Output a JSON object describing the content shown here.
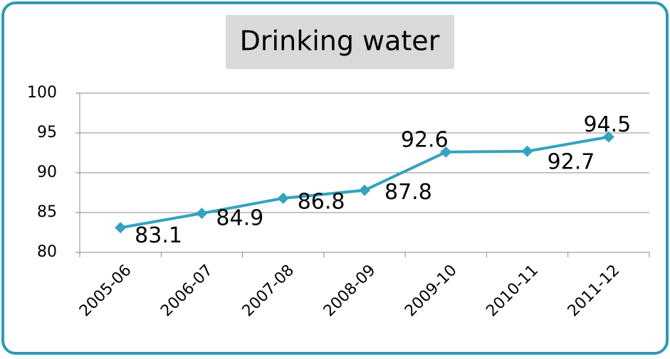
{
  "chart_data": {
    "type": "line",
    "title": "Drinking water",
    "categories": [
      "2005-06",
      "2006-07",
      "2007-08",
      "2008-09",
      "2009-10",
      "2010-11",
      "2011-12"
    ],
    "series": [
      {
        "name": "Drinking water",
        "color": "#34a3bd",
        "values": [
          83.1,
          84.9,
          86.8,
          87.8,
          92.6,
          92.7,
          94.5
        ]
      }
    ],
    "ylim": [
      80,
      100
    ],
    "yticks": [
      80,
      85,
      90,
      95,
      100
    ],
    "grid": true
  }
}
